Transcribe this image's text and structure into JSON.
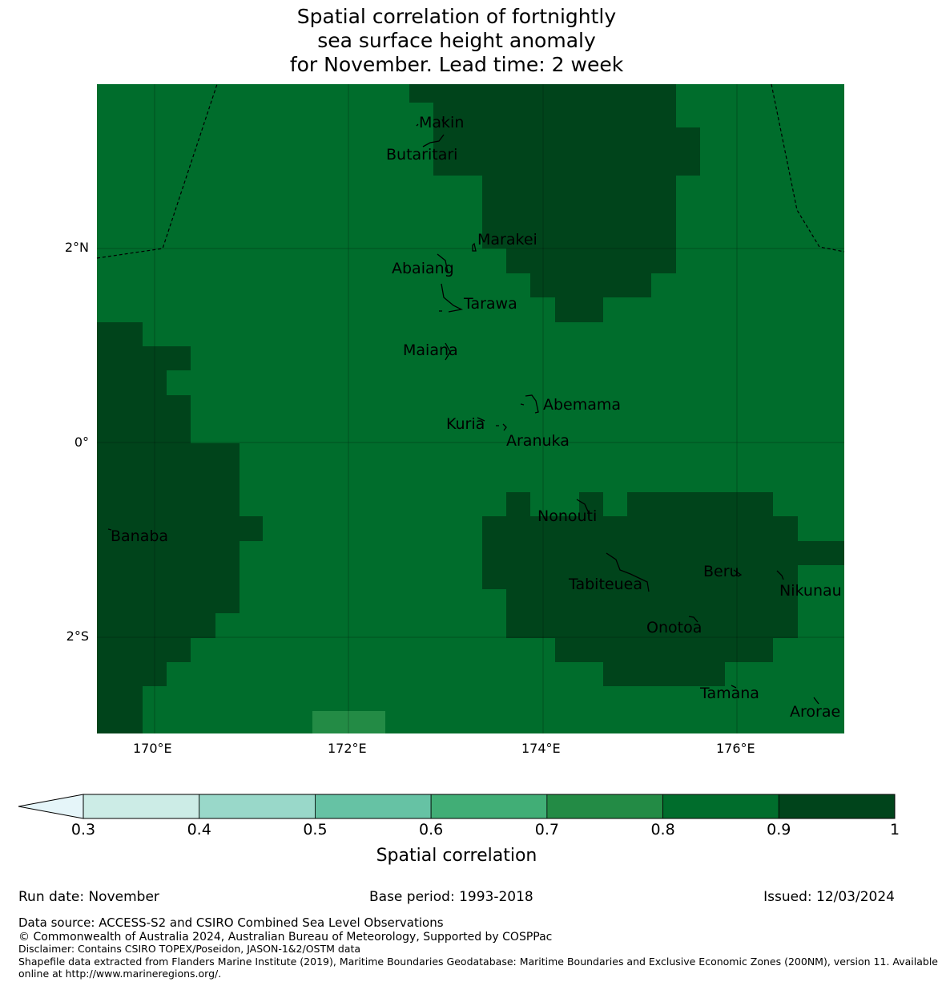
{
  "title": {
    "line1": "Spatial correlation of fortnightly",
    "line2": "sea surface height anomaly",
    "line3": "for November. Lead time: 2 week"
  },
  "map": {
    "x_axis_labels": [
      "170°E",
      "172°E",
      "174°E",
      "176°E"
    ],
    "y_axis_labels": [
      "2°N",
      "0°",
      "2°S"
    ],
    "places": [
      {
        "name": "Makin"
      },
      {
        "name": "Butaritari"
      },
      {
        "name": "Marakei"
      },
      {
        "name": "Abaiang"
      },
      {
        "name": "Tarawa"
      },
      {
        "name": "Maiana"
      },
      {
        "name": "Abemama"
      },
      {
        "name": "Kuria"
      },
      {
        "name": "Aranuka"
      },
      {
        "name": "Nonouti"
      },
      {
        "name": "Banaba"
      },
      {
        "name": "Tabiteuea"
      },
      {
        "name": "Beru"
      },
      {
        "name": "Nikunau"
      },
      {
        "name": "Onotoa"
      },
      {
        "name": "Tamana"
      },
      {
        "name": "Arorae"
      }
    ],
    "colors": {
      "c0.7": "#238b45",
      "c0.8": "#006d2c",
      "c0.9": "#00441b"
    }
  },
  "colorbar": {
    "title": "Spatial correlation",
    "ticks": [
      "0.3",
      "0.4",
      "0.5",
      "0.6",
      "0.7",
      "0.8",
      "0.9",
      "1"
    ],
    "colors": [
      "#e5f5f9",
      "#ccece6",
      "#99d8c9",
      "#66c2a4",
      "#41ae76",
      "#238b45",
      "#006d2c",
      "#00441b"
    ]
  },
  "footer": {
    "run_date": "Run date: November",
    "base_period": "Base period: 1993-2018",
    "issued": "Issued: 12/03/2024",
    "data_source": "Data source: ACCESS-S2 and CSIRO Combined Sea Level Observations",
    "copyright": "© Commonwealth of Australia 2024, Australian Bureau of Meteorology, Supported by COSPPac",
    "disclaimer": "Disclaimer: Contains CSIRO TOPEX/Poseidon, JASON-1&2/OSTM data",
    "shapefile1": "Shapefile data extracted from Flanders Marine Institute (2019), Maritime Boundaries Geodatabase: Maritime Boundaries and Exclusive Economic Zones (200NM), version 11. Available",
    "shapefile2": "online at http://www.marineregions.org/."
  }
}
